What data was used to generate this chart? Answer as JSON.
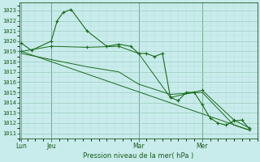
{
  "background_color": "#c8ecec",
  "grid_major_color": "#99ccbb",
  "grid_minor_color": "#b8ddd4",
  "line_color": "#1a6b1a",
  "text_color": "#1a5c1a",
  "title": "Pression niveau de la mer( hPa )",
  "ylim_low": 1010.5,
  "ylim_high": 1023.8,
  "yticks": [
    1011,
    1012,
    1013,
    1014,
    1015,
    1016,
    1017,
    1018,
    1019,
    1020,
    1021,
    1022,
    1023
  ],
  "day_labels": [
    "Lun",
    "Jeu",
    "Mar",
    "Mer"
  ],
  "day_positions": [
    0.5,
    8,
    30,
    46
  ],
  "xlim_low": 0,
  "xlim_high": 60,
  "series1_x": [
    0.5,
    3,
    8,
    9.5,
    11,
    13,
    17,
    22,
    25,
    28,
    30,
    32,
    34,
    36,
    38,
    40,
    42,
    44,
    46,
    48,
    50,
    52,
    54,
    56,
    58
  ],
  "series1_y": [
    1019.8,
    1019.1,
    1020.0,
    1022.0,
    1022.8,
    1023.1,
    1021.0,
    1019.5,
    1019.7,
    1019.5,
    1018.8,
    1018.8,
    1018.5,
    1018.8,
    1014.5,
    1014.2,
    1015.0,
    1015.0,
    1013.8,
    1012.5,
    1012.0,
    1011.8,
    1012.2,
    1012.3,
    1011.4
  ],
  "series2_x": [
    0.5,
    8,
    17,
    25,
    30,
    38,
    46,
    54,
    58
  ],
  "series2_y": [
    1019.0,
    1019.5,
    1019.4,
    1019.5,
    1018.8,
    1014.5,
    1015.2,
    1012.3,
    1011.5
  ],
  "series3_x": [
    0.5,
    8,
    17,
    25,
    30,
    38,
    46,
    54,
    58
  ],
  "series3_y": [
    1018.8,
    1018.2,
    1017.5,
    1017.0,
    1015.8,
    1014.8,
    1015.0,
    1011.8,
    1011.3
  ],
  "series4_x": [
    0.5,
    58
  ],
  "series4_y": [
    1019.0,
    1011.3
  ]
}
